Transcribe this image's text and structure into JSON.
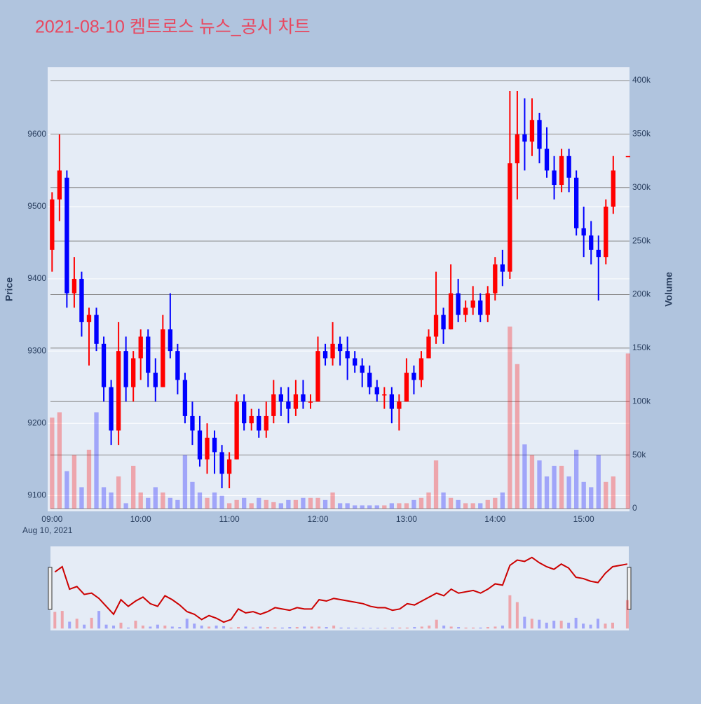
{
  "chart_data": {
    "type": "candlestick",
    "title": "2021-08-10 켐트로스 뉴스_공시 차트",
    "ylabel": "Price",
    "y2label": "Volume",
    "xlabel_date": "Aug 10, 2021",
    "increasing_color": "#ff0000",
    "decreasing_color": "#0000ff",
    "x": [
      "09:00",
      "09:05",
      "09:10",
      "09:15",
      "09:20",
      "09:25",
      "09:30",
      "09:35",
      "09:40",
      "09:45",
      "09:50",
      "09:55",
      "10:00",
      "10:05",
      "10:10",
      "10:15",
      "10:20",
      "10:25",
      "10:30",
      "10:35",
      "10:40",
      "10:45",
      "10:50",
      "10:55",
      "11:00",
      "11:05",
      "11:10",
      "11:15",
      "11:20",
      "11:25",
      "11:30",
      "11:35",
      "11:40",
      "11:45",
      "11:50",
      "11:55",
      "12:00",
      "12:05",
      "12:10",
      "12:15",
      "12:20",
      "12:25",
      "12:30",
      "12:35",
      "12:40",
      "12:45",
      "12:50",
      "12:55",
      "13:00",
      "13:05",
      "13:10",
      "13:15",
      "13:20",
      "13:25",
      "13:30",
      "13:35",
      "13:40",
      "13:45",
      "13:50",
      "13:55",
      "14:00",
      "14:05",
      "14:10",
      "14:15",
      "14:20",
      "14:25",
      "14:30",
      "14:35",
      "14:40",
      "14:45",
      "14:50",
      "14:55",
      "15:00",
      "15:05",
      "15:10",
      "15:15",
      "15:20",
      "15:30"
    ],
    "open": [
      9440,
      9510,
      9540,
      9380,
      9400,
      9340,
      9350,
      9310,
      9250,
      9190,
      9300,
      9250,
      9290,
      9320,
      9270,
      9250,
      9330,
      9300,
      9260,
      9210,
      9190,
      9150,
      9180,
      9160,
      9130,
      9150,
      9230,
      9200,
      9210,
      9190,
      9210,
      9240,
      9230,
      9220,
      9240,
      9230,
      9230,
      9300,
      9290,
      9310,
      9300,
      9290,
      9280,
      9270,
      9250,
      9240,
      9240,
      9220,
      9230,
      9270,
      9260,
      9290,
      9320,
      9350,
      9330,
      9380,
      9350,
      9360,
      9370,
      9350,
      9380,
      9420,
      9410,
      9560,
      9600,
      9590,
      9620,
      9580,
      9550,
      9530,
      9570,
      9540,
      9470,
      9460,
      9440,
      9430,
      9500,
      9570
    ],
    "high": [
      9520,
      9600,
      9550,
      9430,
      9410,
      9360,
      9360,
      9320,
      9260,
      9340,
      9320,
      9300,
      9330,
      9330,
      9290,
      9350,
      9380,
      9310,
      9270,
      9230,
      9210,
      9200,
      9190,
      9170,
      9160,
      9240,
      9240,
      9220,
      9220,
      9230,
      9260,
      9250,
      9250,
      9260,
      9260,
      9240,
      9320,
      9310,
      9340,
      9320,
      9320,
      9300,
      9290,
      9280,
      9260,
      9250,
      9250,
      9240,
      9290,
      9280,
      9300,
      9330,
      9410,
      9360,
      9420,
      9400,
      9370,
      9390,
      9380,
      9390,
      9430,
      9440,
      9660,
      9660,
      9650,
      9650,
      9630,
      9610,
      9570,
      9580,
      9580,
      9550,
      9500,
      9480,
      9460,
      9510,
      9570,
      9570
    ],
    "low": [
      9410,
      9480,
      9360,
      9360,
      9320,
      9280,
      9300,
      9230,
      9170,
      9170,
      9230,
      9230,
      9260,
      9250,
      9230,
      9250,
      9290,
      9240,
      9200,
      9170,
      9140,
      9130,
      9130,
      9110,
      9110,
      9150,
      9190,
      9190,
      9180,
      9180,
      9200,
      9210,
      9200,
      9210,
      9220,
      9220,
      9230,
      9280,
      9280,
      9280,
      9260,
      9270,
      9250,
      9240,
      9230,
      9220,
      9200,
      9190,
      9230,
      9240,
      9250,
      9290,
      9310,
      9310,
      9330,
      9340,
      9340,
      9350,
      9340,
      9340,
      9370,
      9390,
      9400,
      9510,
      9550,
      9570,
      9560,
      9540,
      9510,
      9520,
      9520,
      9460,
      9430,
      9420,
      9370,
      9420,
      9490,
      9570
    ],
    "close": [
      9510,
      9550,
      9380,
      9400,
      9340,
      9350,
      9310,
      9250,
      9190,
      9300,
      9250,
      9290,
      9320,
      9270,
      9250,
      9330,
      9300,
      9260,
      9210,
      9190,
      9150,
      9180,
      9160,
      9130,
      9150,
      9230,
      9200,
      9210,
      9190,
      9210,
      9240,
      9230,
      9220,
      9240,
      9230,
      9230,
      9300,
      9290,
      9310,
      9300,
      9290,
      9280,
      9270,
      9250,
      9240,
      9240,
      9220,
      9230,
      9270,
      9260,
      9290,
      9320,
      9350,
      9330,
      9380,
      9350,
      9360,
      9370,
      9350,
      9380,
      9420,
      9410,
      9560,
      9600,
      9590,
      9620,
      9580,
      9550,
      9530,
      9570,
      9540,
      9470,
      9460,
      9440,
      9430,
      9500,
      9550,
      9570
    ],
    "volume": [
      85000,
      90000,
      35000,
      50000,
      20000,
      55000,
      90000,
      20000,
      15000,
      30000,
      5000,
      40000,
      15000,
      10000,
      20000,
      15000,
      10000,
      8000,
      50000,
      25000,
      15000,
      10000,
      15000,
      12000,
      5000,
      8000,
      10000,
      5000,
      10000,
      8000,
      6000,
      5000,
      8000,
      8000,
      10000,
      10000,
      10000,
      8000,
      15000,
      5000,
      5000,
      3000,
      3000,
      3000,
      3000,
      3000,
      5000,
      5000,
      5000,
      8000,
      10000,
      15000,
      45000,
      15000,
      10000,
      8000,
      5000,
      5000,
      5000,
      8000,
      10000,
      15000,
      170000,
      135000,
      60000,
      50000,
      45000,
      30000,
      40000,
      40000,
      30000,
      55000,
      25000,
      20000,
      50000,
      25000,
      30000,
      145000
    ],
    "xlim": [
      "08:57",
      "15:31"
    ],
    "xticks": [
      "09:00",
      "10:00",
      "11:00",
      "12:00",
      "13:00",
      "14:00",
      "15:00"
    ],
    "ylim": [
      9078,
      9693
    ],
    "yticks": [
      9100,
      9200,
      9300,
      9400,
      9500,
      9600
    ],
    "y2lim": [
      -2600,
      412400
    ],
    "y2ticks": [
      0,
      {
        "value": 50000,
        "label": "50k"
      },
      {
        "value": 100000,
        "label": "100k"
      },
      {
        "value": 150000,
        "label": "150k"
      },
      {
        "value": 200000,
        "label": "200k"
      },
      {
        "value": 250000,
        "label": "250k"
      },
      {
        "value": 300000,
        "label": "300k"
      },
      {
        "value": 350000,
        "label": "350k"
      },
      {
        "value": 400000,
        "label": "400k"
      }
    ],
    "grid": true
  }
}
